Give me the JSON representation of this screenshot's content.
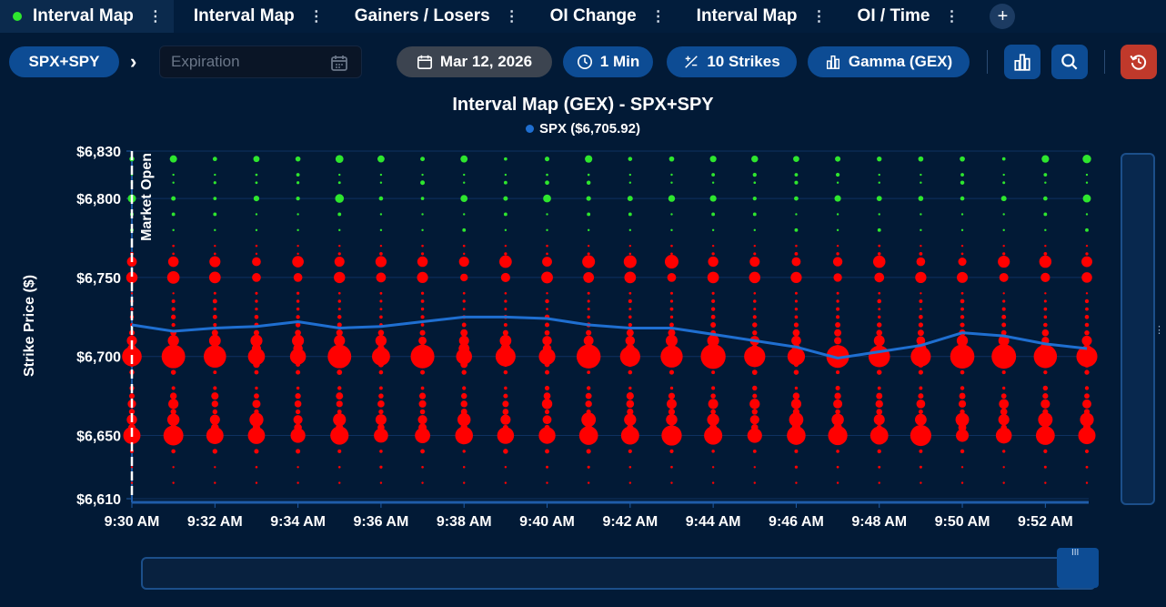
{
  "tabs": [
    {
      "label": "Interval Map",
      "active": true
    },
    {
      "label": "Interval Map",
      "active": false
    },
    {
      "label": "Gainers / Losers",
      "active": false
    },
    {
      "label": "OI Change",
      "active": false
    },
    {
      "label": "Interval Map",
      "active": false
    },
    {
      "label": "OI / Time",
      "active": false
    }
  ],
  "tab_menu_glyph": "⋮",
  "add_tab_glyph": "+",
  "toolbar": {
    "symbol": "SPX+SPY",
    "expiration_placeholder": "Expiration",
    "date": "Mar 12, 2026",
    "interval": "1 Min",
    "strikes": "10 Strikes",
    "metric": "Gamma (GEX)"
  },
  "icons": {
    "calendar": "calendar-icon",
    "clock": "clock-icon",
    "strikes": "plus-minus-icon",
    "metric": "bar-chart-icon",
    "chart_type": "bar-chart-icon",
    "zoom": "search-icon",
    "reset": "reset-icon"
  },
  "chart_data": {
    "type": "scatter",
    "title": "Interval Map (GEX) - SPX+SPY",
    "legend": [
      {
        "name": "SPX ($6,705.92)",
        "color": "#1f6fd1"
      }
    ],
    "ylabel": "Strike Price ($)",
    "ylim": [
      6610,
      6830
    ],
    "yticks": [
      "$6,830",
      "$6,800",
      "$6,750",
      "$6,700",
      "$6,650",
      "$6,610"
    ],
    "ytick_values": [
      6830,
      6800,
      6750,
      6700,
      6650,
      6610
    ],
    "x": [
      "9:30 AM",
      "9:31 AM",
      "9:32 AM",
      "9:33 AM",
      "9:34 AM",
      "9:35 AM",
      "9:36 AM",
      "9:37 AM",
      "9:38 AM",
      "9:39 AM",
      "9:40 AM",
      "9:41 AM",
      "9:42 AM",
      "9:43 AM",
      "9:44 AM",
      "9:45 AM",
      "9:46 AM",
      "9:47 AM",
      "9:48 AM",
      "9:49 AM",
      "9:50 AM",
      "9:51 AM",
      "9:52 AM",
      "9:53 AM"
    ],
    "xticks": [
      "9:30 AM",
      "9:32 AM",
      "9:34 AM",
      "9:36 AM",
      "9:38 AM",
      "9:40 AM",
      "9:42 AM",
      "9:44 AM",
      "9:46 AM",
      "9:48 AM",
      "9:50 AM",
      "9:52 AM"
    ],
    "annotation": "Market Open",
    "series": [
      {
        "name": "SPX ($6,705.92)",
        "color": "#1f6fd1",
        "values": [
          6720,
          6716,
          6718,
          6719,
          6722,
          6718,
          6719,
          6722,
          6725,
          6725,
          6724,
          6720,
          6718,
          6718,
          6714,
          6710,
          6706,
          6699,
          6703,
          6707,
          6715,
          6713,
          6708,
          6705
        ]
      }
    ],
    "bubble_levels": {
      "strikes": [
        6825,
        6815,
        6810,
        6800,
        6790,
        6780,
        6770,
        6765,
        6760,
        6750,
        6740,
        6735,
        6730,
        6725,
        6720,
        6715,
        6710,
        6705,
        6700,
        6695,
        6690,
        6680,
        6675,
        6670,
        6665,
        6660,
        6655,
        6650,
        6640,
        6630,
        6620
      ],
      "sign": [
        "+",
        "+",
        "+",
        "+",
        "+",
        "+",
        "-",
        "-",
        "-",
        "-",
        "-",
        "-",
        "-",
        "-",
        "-",
        "-",
        "-",
        "-",
        "-",
        "-",
        "-",
        "-",
        "-",
        "-",
        "-",
        "-",
        "-",
        "-",
        "-",
        "-",
        "-"
      ],
      "relative_size": [
        0.22,
        0.1,
        0.12,
        0.22,
        0.08,
        0.06,
        0.1,
        0.14,
        0.55,
        0.5,
        0.12,
        0.18,
        0.16,
        0.2,
        0.22,
        0.3,
        0.48,
        0.45,
        1.0,
        0.3,
        0.22,
        0.2,
        0.3,
        0.42,
        0.28,
        0.58,
        0.35,
        0.85,
        0.2,
        0.12,
        0.06
      ]
    },
    "colors": {
      "positive": "#2ee62e",
      "negative": "#ff0000",
      "line": "#1f6fd1",
      "grid": "#0f3160"
    }
  }
}
